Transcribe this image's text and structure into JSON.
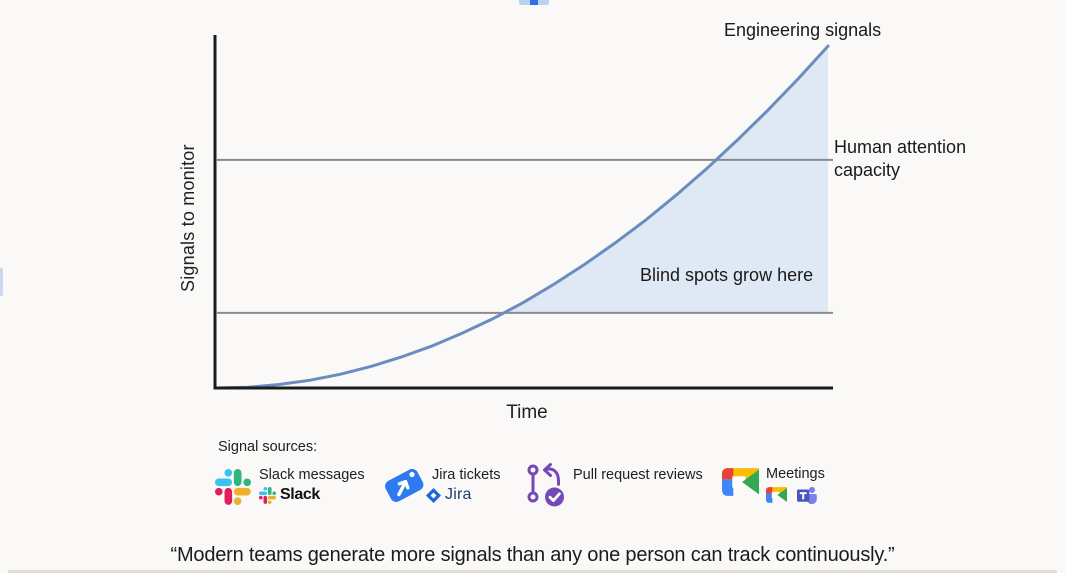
{
  "chart_data": {
    "type": "line",
    "title": "",
    "xlabel": "Time",
    "ylabel": "Signals to monitor",
    "axes": {
      "x_range": [
        0,
        1
      ],
      "y_range": [
        0,
        1
      ],
      "grid": false,
      "ticks": "none"
    },
    "series": [
      {
        "name": "Engineering signals",
        "shape": "exponential-growth",
        "color": "#6b8cbe",
        "t": [
          0,
          0.05,
          0.1,
          0.15,
          0.2,
          0.25,
          0.3,
          0.35,
          0.4,
          0.45,
          0.5,
          0.55,
          0.6,
          0.65,
          0.7,
          0.75,
          0.8,
          0.85,
          0.9,
          0.95,
          1
        ],
        "v": [
          0,
          0.002,
          0.01,
          0.022,
          0.039,
          0.061,
          0.088,
          0.119,
          0.156,
          0.197,
          0.243,
          0.295,
          0.351,
          0.412,
          0.477,
          0.548,
          0.623,
          0.704,
          0.789,
          0.879,
          0.974
        ]
      }
    ],
    "reference_lines": [
      {
        "label": "Human attention capacity",
        "v": 0.65,
        "color": "#8a8a8a"
      },
      {
        "label": "",
        "v": 0.214,
        "color": "#8a8a8a"
      }
    ],
    "shaded_region": {
      "description": "area between signal curve and lower reference line, right of their crossing",
      "from_t": 0.469,
      "to_t": 1,
      "fill": "#dce5f4"
    },
    "annotations": [
      {
        "text": "Blind spots grow here"
      }
    ],
    "axis_color": "#1c1c1c"
  },
  "legend": {
    "heading": "Signal sources:",
    "items": [
      {
        "icon": "slack-logo",
        "label": "Slack messages",
        "sub_label": "Slack"
      },
      {
        "icon": "jira-tag",
        "label": "Jira tickets",
        "sub_label": "Jira"
      },
      {
        "icon": "git-pull-request",
        "label": "Pull request reviews"
      },
      {
        "icon": "google-meet",
        "label": "Meetings",
        "sub_icons": [
          "google-meet-icon",
          "microsoft-teams-icon"
        ]
      }
    ]
  },
  "quote": "“Modern teams generate more signals than any one person can track continuously.”",
  "colors": {
    "background": "#faf9f7",
    "curve": "#6b8cbe",
    "shade": "#dce5f4",
    "reference_line": "#8a8a8a",
    "axis": "#1c1c1c",
    "slack": [
      "#36C5F0",
      "#2EB67D",
      "#ECB22E",
      "#E01E5A"
    ],
    "jira_blue": "#2e7af0",
    "pull_request_purple": "#7448b8",
    "meet": [
      "#EA4335",
      "#FBBC05",
      "#4285F4",
      "#34A853"
    ],
    "teams_purple": "#4B53BC"
  }
}
